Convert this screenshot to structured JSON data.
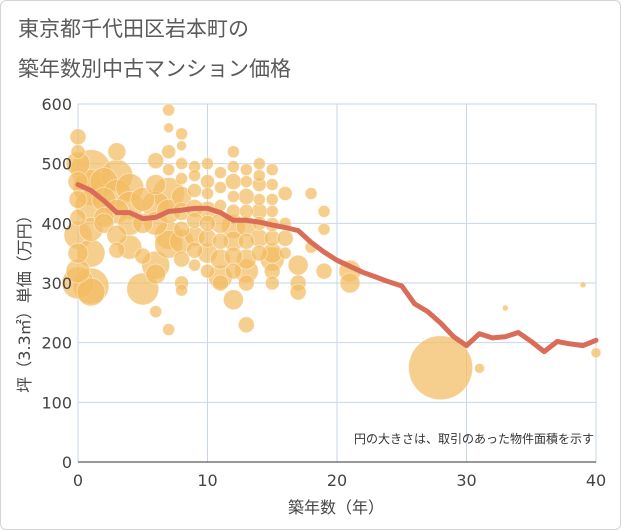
{
  "title_line1": "東京都千代田区岩本町の",
  "title_line2": "築年数別中古マンション価格",
  "chart_data": {
    "type": "scatter",
    "xlabel": "築年数（年）",
    "ylabel": "坪（3.3㎡）単価（万円）",
    "xlim": [
      0,
      40
    ],
    "ylim": [
      0,
      600
    ],
    "xticks": [
      0,
      10,
      20,
      30,
      40
    ],
    "yticks": [
      0,
      100,
      200,
      300,
      400,
      500,
      600
    ],
    "grid": true,
    "note": "円の大きさは、取引のあった物件面積を示す",
    "colors": {
      "bubble": "#f3bd62",
      "line": "#d96d58",
      "grid": "#c9d6e6"
    },
    "series": [
      {
        "type": "bubble",
        "points": [
          [
            0,
            545,
            8
          ],
          [
            0,
            520,
            7
          ],
          [
            0,
            500,
            12
          ],
          [
            0,
            470,
            10
          ],
          [
            0,
            440,
            9
          ],
          [
            0,
            410,
            8
          ],
          [
            0,
            380,
            14
          ],
          [
            0,
            350,
            10
          ],
          [
            0,
            320,
            12
          ],
          [
            0,
            300,
            16
          ],
          [
            1,
            490,
            20
          ],
          [
            1,
            460,
            18
          ],
          [
            1,
            430,
            16
          ],
          [
            1,
            390,
            12
          ],
          [
            1,
            350,
            14
          ],
          [
            1,
            295,
            18
          ],
          [
            1,
            285,
            14
          ],
          [
            2,
            470,
            14
          ],
          [
            2,
            440,
            12
          ],
          [
            2,
            410,
            10
          ],
          [
            2,
            400,
            10
          ],
          [
            3,
            520,
            9
          ],
          [
            3,
            480,
            16
          ],
          [
            3,
            450,
            14
          ],
          [
            3,
            420,
            12
          ],
          [
            3,
            380,
            10
          ],
          [
            3,
            355,
            8
          ],
          [
            4,
            460,
            14
          ],
          [
            4,
            430,
            14
          ],
          [
            4,
            400,
            12
          ],
          [
            4,
            360,
            12
          ],
          [
            5,
            440,
            12
          ],
          [
            5,
            400,
            10
          ],
          [
            5,
            345,
            8
          ],
          [
            5,
            290,
            16
          ],
          [
            6,
            505,
            8
          ],
          [
            6,
            465,
            10
          ],
          [
            6,
            430,
            14
          ],
          [
            6,
            400,
            12
          ],
          [
            6,
            330,
            14
          ],
          [
            6,
            315,
            10
          ],
          [
            6,
            252,
            6
          ],
          [
            7,
            590,
            6
          ],
          [
            7,
            560,
            5
          ],
          [
            7,
            520,
            7
          ],
          [
            7,
            490,
            6
          ],
          [
            7,
            450,
            16
          ],
          [
            7,
            420,
            12
          ],
          [
            7,
            380,
            14
          ],
          [
            7,
            365,
            14
          ],
          [
            7,
            222,
            6
          ],
          [
            8,
            550,
            6
          ],
          [
            8,
            530,
            5
          ],
          [
            8,
            500,
            6
          ],
          [
            8,
            475,
            6
          ],
          [
            8,
            445,
            10
          ],
          [
            8,
            420,
            9
          ],
          [
            8,
            390,
            8
          ],
          [
            8,
            370,
            12
          ],
          [
            8,
            340,
            8
          ],
          [
            8,
            300,
            7
          ],
          [
            8,
            288,
            6
          ],
          [
            9,
            495,
            6
          ],
          [
            9,
            480,
            6
          ],
          [
            9,
            455,
            7
          ],
          [
            9,
            425,
            9
          ],
          [
            9,
            405,
            8
          ],
          [
            9,
            378,
            10
          ],
          [
            9,
            355,
            8
          ],
          [
            9,
            330,
            6
          ],
          [
            10,
            500,
            6
          ],
          [
            10,
            470,
            7
          ],
          [
            10,
            450,
            6
          ],
          [
            10,
            420,
            10
          ],
          [
            10,
            400,
            8
          ],
          [
            10,
            375,
            9
          ],
          [
            10,
            350,
            10
          ],
          [
            10,
            320,
            7
          ],
          [
            11,
            485,
            6
          ],
          [
            11,
            460,
            6
          ],
          [
            11,
            430,
            6
          ],
          [
            11,
            400,
            10
          ],
          [
            11,
            370,
            8
          ],
          [
            11,
            340,
            10
          ],
          [
            11,
            310,
            12
          ],
          [
            11,
            300,
            8
          ],
          [
            12,
            520,
            6
          ],
          [
            12,
            495,
            6
          ],
          [
            12,
            470,
            8
          ],
          [
            12,
            445,
            6
          ],
          [
            12,
            420,
            7
          ],
          [
            12,
            395,
            12
          ],
          [
            12,
            370,
            10
          ],
          [
            12,
            345,
            9
          ],
          [
            12,
            320,
            8
          ],
          [
            12,
            272,
            10
          ],
          [
            13,
            490,
            6
          ],
          [
            13,
            470,
            6
          ],
          [
            13,
            445,
            8
          ],
          [
            13,
            420,
            7
          ],
          [
            13,
            395,
            10
          ],
          [
            13,
            370,
            8
          ],
          [
            13,
            340,
            10
          ],
          [
            13,
            320,
            12
          ],
          [
            13,
            300,
            8
          ],
          [
            13,
            230,
            8
          ],
          [
            14,
            500,
            6
          ],
          [
            14,
            480,
            6
          ],
          [
            14,
            465,
            7
          ],
          [
            14,
            440,
            6
          ],
          [
            14,
            420,
            8
          ],
          [
            14,
            400,
            7
          ],
          [
            14,
            375,
            9
          ],
          [
            14,
            350,
            8
          ],
          [
            15,
            490,
            6
          ],
          [
            15,
            465,
            6
          ],
          [
            15,
            440,
            6
          ],
          [
            15,
            420,
            6
          ],
          [
            15,
            398,
            7
          ],
          [
            15,
            375,
            8
          ],
          [
            15,
            350,
            10
          ],
          [
            15,
            340,
            12
          ],
          [
            15,
            320,
            8
          ],
          [
            15,
            300,
            7
          ],
          [
            16,
            450,
            7
          ],
          [
            16,
            400,
            6
          ],
          [
            16,
            375,
            8
          ],
          [
            16,
            350,
            6
          ],
          [
            17,
            330,
            10
          ],
          [
            17,
            300,
            8
          ],
          [
            17,
            285,
            8
          ],
          [
            18,
            450,
            6
          ],
          [
            18,
            360,
            6
          ],
          [
            19,
            420,
            6
          ],
          [
            19,
            390,
            6
          ],
          [
            19,
            320,
            8
          ],
          [
            21,
            320,
            11
          ],
          [
            21,
            300,
            10
          ],
          [
            28,
            158,
            32
          ],
          [
            31,
            157,
            5
          ],
          [
            33,
            258,
            3
          ],
          [
            39,
            297,
            3
          ],
          [
            40,
            183,
            5
          ]
        ]
      },
      {
        "type": "line",
        "name": "",
        "x": [
          0,
          1,
          2,
          3,
          4,
          5,
          6,
          7,
          8,
          9,
          10,
          11,
          12,
          13,
          14,
          15,
          16,
          17,
          18,
          19,
          20,
          21,
          22,
          23,
          24,
          25,
          26,
          27,
          28,
          29,
          30,
          31,
          32,
          33,
          34,
          35,
          36,
          37,
          38,
          39,
          40
        ],
        "y": [
          465,
          455,
          438,
          418,
          418,
          408,
          410,
          420,
          422,
          425,
          425,
          418,
          405,
          405,
          402,
          397,
          393,
          388,
          368,
          352,
          338,
          328,
          318,
          310,
          302,
          295,
          265,
          252,
          233,
          210,
          195,
          215,
          208,
          210,
          217,
          202,
          185,
          202,
          198,
          195,
          204
        ]
      }
    ]
  }
}
